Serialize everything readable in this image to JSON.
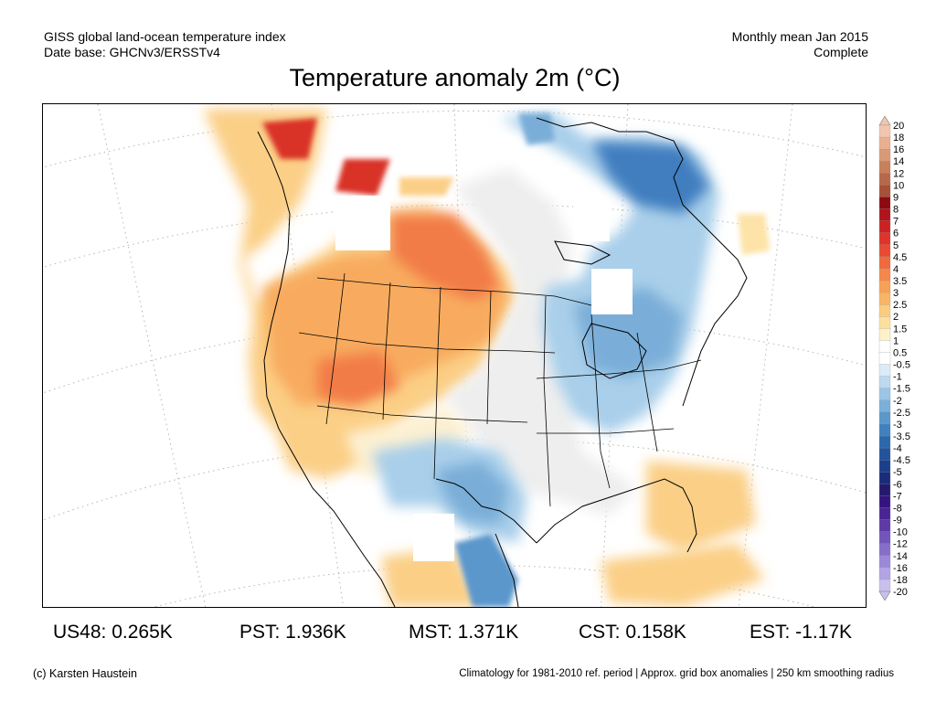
{
  "header": {
    "left_line1": "GISS global land-ocean temperature index",
    "left_line2": "Date base: GHCNv3/ERSSTv4",
    "right_line1": "Monthly mean Jan 2015",
    "right_line2": "Complete"
  },
  "title": "Temperature anomaly 2m (°C)",
  "colorbar": {
    "levels": [
      "20",
      "18",
      "16",
      "14",
      "12",
      "10",
      "9",
      "8",
      "7",
      "6",
      "5",
      "4.5",
      "4",
      "3.5",
      "3",
      "2.5",
      "2",
      "1.5",
      "1",
      "0.5",
      "-0.5",
      "-1",
      "-1.5",
      "-2",
      "-2.5",
      "-3",
      "-3.5",
      "-4",
      "-4.5",
      "-5",
      "-6",
      "-7",
      "-8",
      "-9",
      "-10",
      "-12",
      "-14",
      "-16",
      "-18",
      "-20"
    ],
    "colors": [
      "#f2c6ae",
      "#e8b090",
      "#d99a78",
      "#c8805c",
      "#b8684a",
      "#a85038",
      "#8e0a12",
      "#b0141c",
      "#cc2222",
      "#e0332a",
      "#ea4a32",
      "#f06a3e",
      "#f5874a",
      "#f8a055",
      "#f9b564",
      "#fbcc7e",
      "#fde09e",
      "#fff0c8",
      "#ffffff",
      "#ffffff",
      "#dcebf8",
      "#bcd9ef",
      "#9cc5e6",
      "#7ab0da",
      "#5a98cc",
      "#4080be",
      "#2c68ad",
      "#22539c",
      "#1a3f8c",
      "#1a2c7c",
      "#231a6e",
      "#331480",
      "#4a2494",
      "#5d3aa6",
      "#7255ba",
      "#876ecb",
      "#9c88d8",
      "#b2a4e4",
      "#c9c0ee"
    ]
  },
  "stats": [
    {
      "label": "US48: 0.265K"
    },
    {
      "label": "PST: 1.936K"
    },
    {
      "label": "MST: 1.371K"
    },
    {
      "label": "CST: 0.158K"
    },
    {
      "label": "EST: -1.17K"
    }
  ],
  "footer": {
    "left": "(c) Karsten Haustein",
    "right": "Climatology for 1981-2010 ref. period | Approx. grid box anomalies | 250 km smoothing radius"
  }
}
